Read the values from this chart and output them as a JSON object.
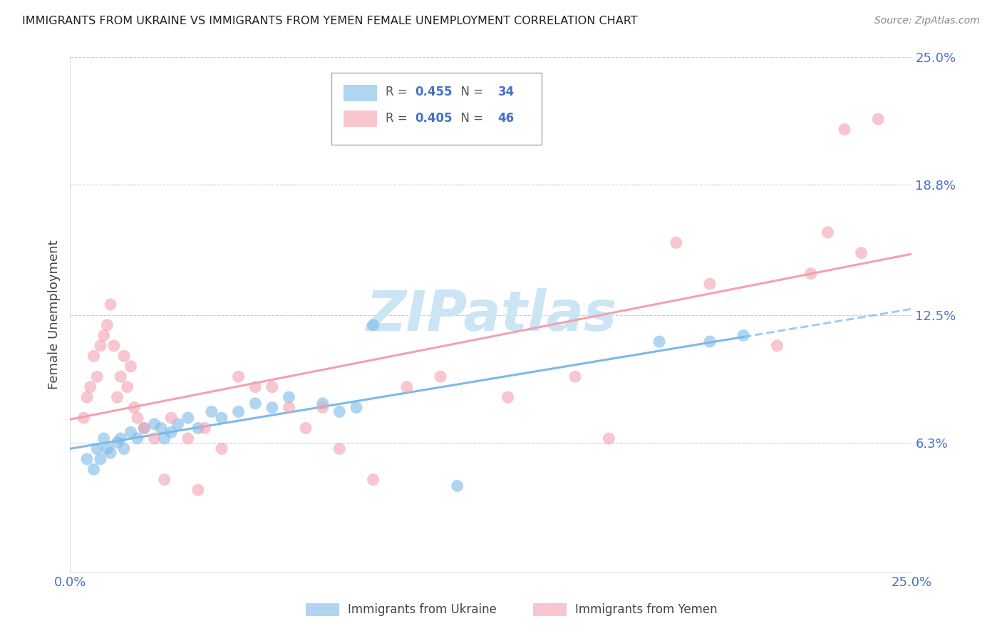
{
  "title": "IMMIGRANTS FROM UKRAINE VS IMMIGRANTS FROM YEMEN FEMALE UNEMPLOYMENT CORRELATION CHART",
  "source": "Source: ZipAtlas.com",
  "ylabel": "Female Unemployment",
  "xlim": [
    0,
    0.25
  ],
  "ylim": [
    0,
    0.25
  ],
  "ukraine_color": "#7cb9e8",
  "yemen_color": "#f4a0b0",
  "ukraine_R": "0.455",
  "ukraine_N": "34",
  "yemen_R": "0.405",
  "yemen_N": "46",
  "ukraine_scatter_x": [
    0.005,
    0.007,
    0.008,
    0.009,
    0.01,
    0.011,
    0.012,
    0.014,
    0.015,
    0.016,
    0.018,
    0.02,
    0.022,
    0.025,
    0.027,
    0.028,
    0.03,
    0.032,
    0.035,
    0.038,
    0.042,
    0.045,
    0.05,
    0.055,
    0.06,
    0.065,
    0.075,
    0.08,
    0.085,
    0.09,
    0.115,
    0.175,
    0.19,
    0.2
  ],
  "ukraine_scatter_y": [
    0.055,
    0.05,
    0.06,
    0.055,
    0.065,
    0.06,
    0.058,
    0.063,
    0.065,
    0.06,
    0.068,
    0.065,
    0.07,
    0.072,
    0.07,
    0.065,
    0.068,
    0.072,
    0.075,
    0.07,
    0.078,
    0.075,
    0.078,
    0.082,
    0.08,
    0.085,
    0.082,
    0.078,
    0.08,
    0.12,
    0.042,
    0.112,
    0.112,
    0.115
  ],
  "yemen_scatter_x": [
    0.004,
    0.005,
    0.006,
    0.007,
    0.008,
    0.009,
    0.01,
    0.011,
    0.012,
    0.013,
    0.014,
    0.015,
    0.016,
    0.017,
    0.018,
    0.019,
    0.02,
    0.022,
    0.025,
    0.028,
    0.03,
    0.035,
    0.038,
    0.04,
    0.045,
    0.05,
    0.055,
    0.06,
    0.065,
    0.07,
    0.075,
    0.08,
    0.09,
    0.1,
    0.11,
    0.13,
    0.15,
    0.16,
    0.18,
    0.19,
    0.21,
    0.22,
    0.225,
    0.23,
    0.235,
    0.24
  ],
  "yemen_scatter_y": [
    0.075,
    0.085,
    0.09,
    0.105,
    0.095,
    0.11,
    0.115,
    0.12,
    0.13,
    0.11,
    0.085,
    0.095,
    0.105,
    0.09,
    0.1,
    0.08,
    0.075,
    0.07,
    0.065,
    0.045,
    0.075,
    0.065,
    0.04,
    0.07,
    0.06,
    0.095,
    0.09,
    0.09,
    0.08,
    0.07,
    0.08,
    0.06,
    0.045,
    0.09,
    0.095,
    0.085,
    0.095,
    0.065,
    0.16,
    0.14,
    0.11,
    0.145,
    0.165,
    0.215,
    0.155,
    0.22
  ],
  "background_color": "#ffffff",
  "grid_color": "#cccccc",
  "watermark": "ZIPatlas",
  "watermark_color": "#cce5f5",
  "ytick_vals": [
    0.0,
    0.063,
    0.125,
    0.188,
    0.25
  ],
  "ytick_labels": [
    "",
    "6.3%",
    "12.5%",
    "18.8%",
    "25.0%"
  ],
  "xtick_vals": [
    0.0,
    0.05,
    0.1,
    0.15,
    0.2,
    0.25
  ],
  "xtick_labels": [
    "0.0%",
    "",
    "",
    "",
    "",
    "25.0%"
  ]
}
